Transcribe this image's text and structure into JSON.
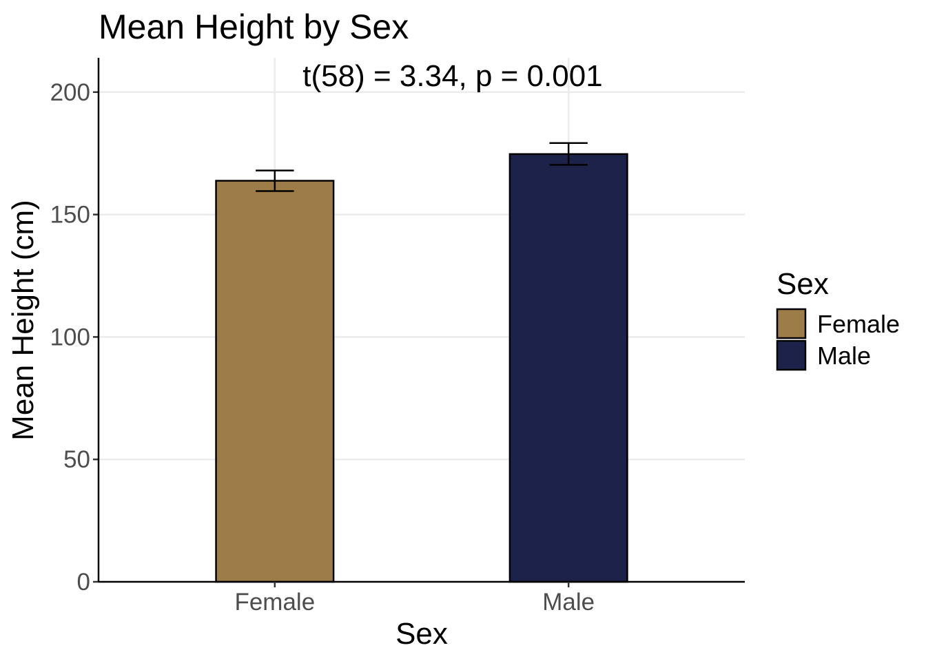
{
  "chart_data": {
    "type": "bar",
    "title": "Mean Height by Sex",
    "annotation": "t(58) = 3.34, p = 0.001",
    "xlabel": "Sex",
    "ylabel": "Mean Height (cm)",
    "categories": [
      "Female",
      "Male"
    ],
    "values": [
      163.8,
      174.7
    ],
    "errors": [
      {
        "low": 159.6,
        "high": 168.0
      },
      {
        "low": 170.3,
        "high": 179.2
      }
    ],
    "colors": [
      "#9e7c47",
      "#1c2249"
    ],
    "ylim": [
      0,
      214
    ],
    "yticks": [
      0,
      50,
      100,
      150,
      200
    ],
    "ytick_labels": [
      "0",
      "50",
      "100",
      "150",
      "200"
    ],
    "grid": true,
    "legend": {
      "title": "Sex",
      "position": "right",
      "items": [
        {
          "label": "Female",
          "color": "#9e7c47"
        },
        {
          "label": "Male",
          "color": "#1c2249"
        }
      ]
    }
  }
}
